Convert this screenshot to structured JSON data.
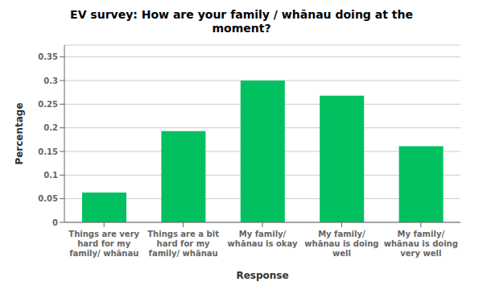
{
  "chart_data": {
    "type": "bar",
    "title": "EV survey: How are your family / whānau doing at the\nmoment?",
    "xlabel": "Response",
    "ylabel": "Percentage",
    "categories": [
      "Things are very\nhard for my\nfamily/ whānau",
      "Things are a bit\nhard for my\nfamily/ whānau",
      "My family/\nwhānau is okay",
      "My family/\nwhānau is doing\nwell",
      "My family/\nwhānau is doing\nvery well"
    ],
    "values": [
      0.063,
      0.193,
      0.3,
      0.268,
      0.161
    ],
    "color": "#00C060",
    "ylim": [
      0,
      0.375
    ],
    "yticks": [
      0,
      0.05,
      0.1,
      0.15,
      0.2,
      0.25,
      0.3,
      0.35
    ],
    "grid": true
  }
}
